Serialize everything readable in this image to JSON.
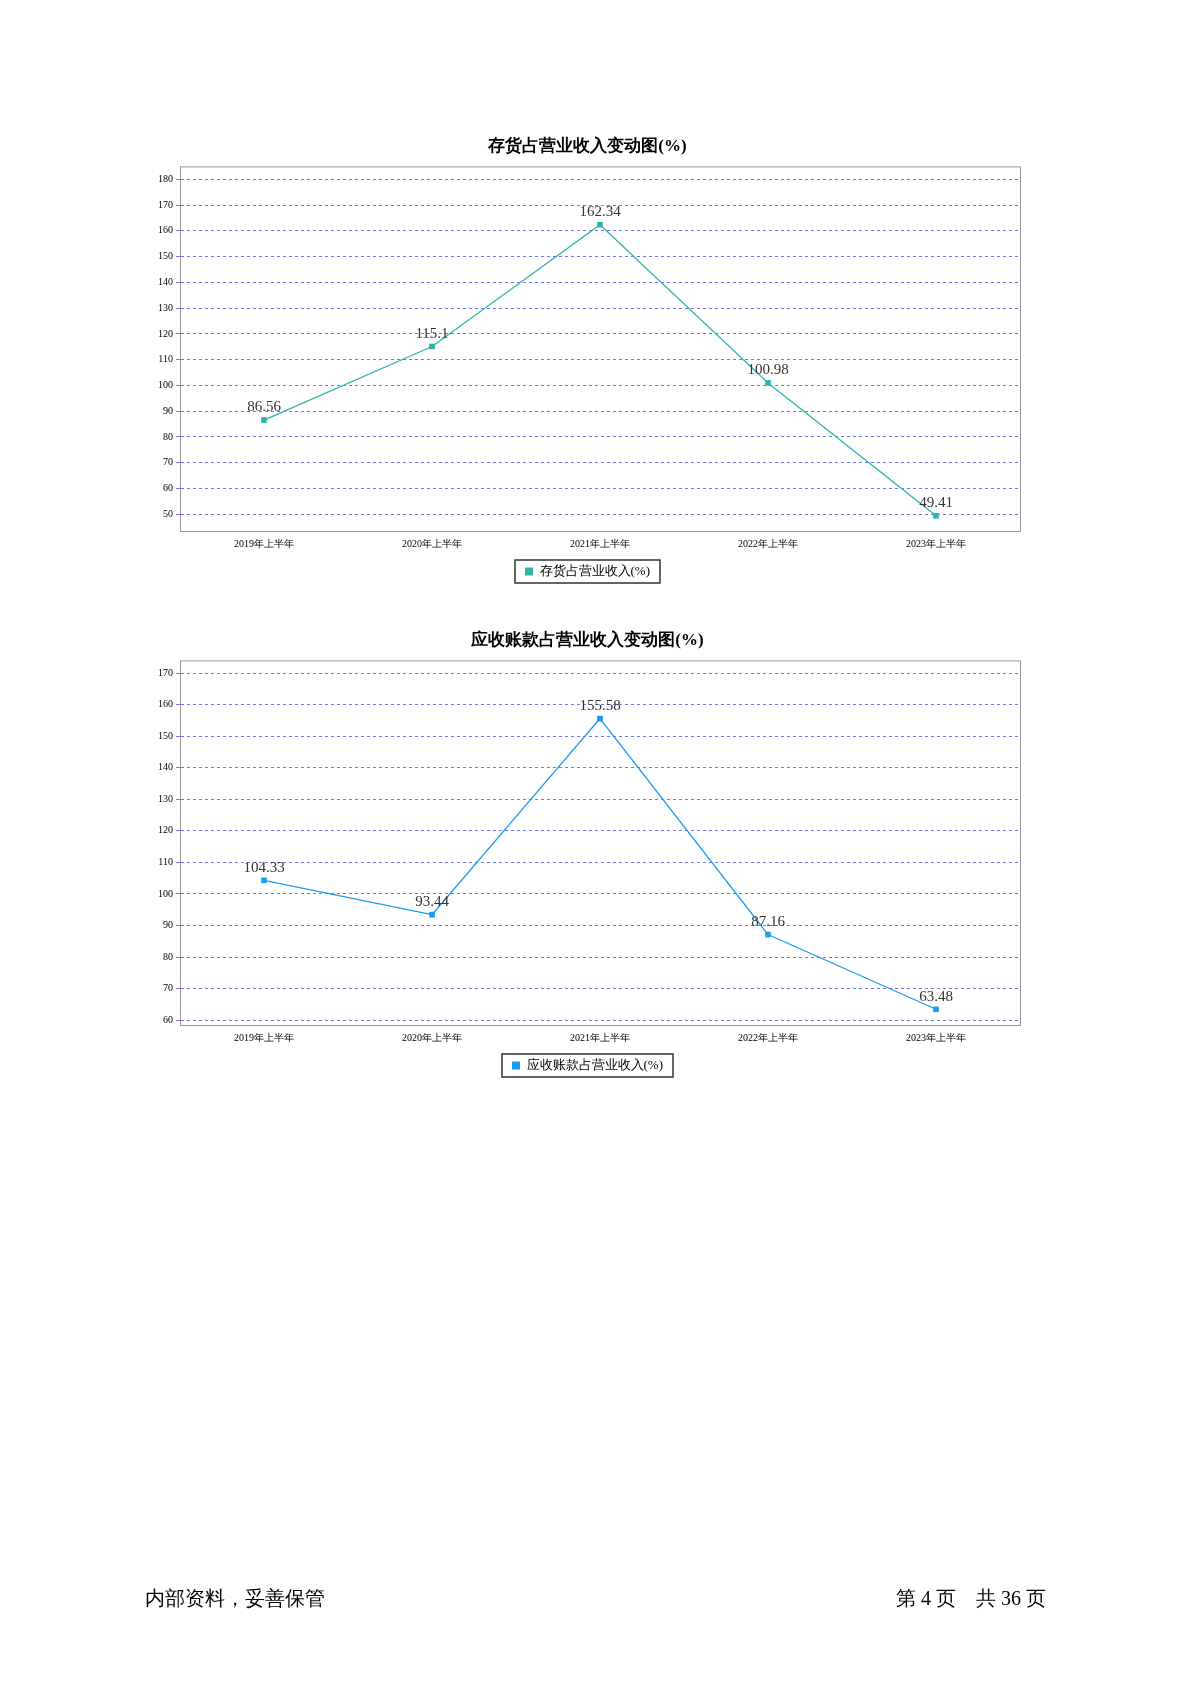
{
  "chart_data": [
    {
      "type": "line",
      "title": "存货占营业收入变动图(%)",
      "categories": [
        "2019年上半年",
        "2020年上半年",
        "2021年上半年",
        "2022年上半年",
        "2023年上半年"
      ],
      "series": [
        {
          "name": "存货占营业收入(%)",
          "color": "#2cb5ad",
          "values": [
            86.56,
            115.1,
            162.34,
            100.98,
            49.41
          ]
        }
      ],
      "ylim": [
        43.5,
        185
      ],
      "yticks": [
        50,
        60,
        70,
        80,
        90,
        100,
        110,
        120,
        130,
        140,
        150,
        160,
        170,
        180
      ],
      "grid": "y",
      "legend": "bottom",
      "marker": "square",
      "data_labels": true
    },
    {
      "type": "line",
      "title": "应收账款占营业收入变动图(%)",
      "categories": [
        "2019年上半年",
        "2020年上半年",
        "2021年上半年",
        "2022年上半年",
        "2023年上半年"
      ],
      "series": [
        {
          "name": "应收账款占营业收入(%)",
          "color": "#1a9cf0",
          "values": [
            104.33,
            93.44,
            155.58,
            87.16,
            63.48
          ]
        }
      ],
      "ylim": [
        58.5,
        174
      ],
      "yticks": [
        60,
        70,
        80,
        90,
        100,
        110,
        120,
        130,
        140,
        150,
        160,
        170
      ],
      "grid": "y",
      "legend": "bottom",
      "marker": "square",
      "data_labels": true,
      "annotations": [
        "内部资料，妥善保管",
        "第 4 页　共 36 页"
      ]
    }
  ]
}
